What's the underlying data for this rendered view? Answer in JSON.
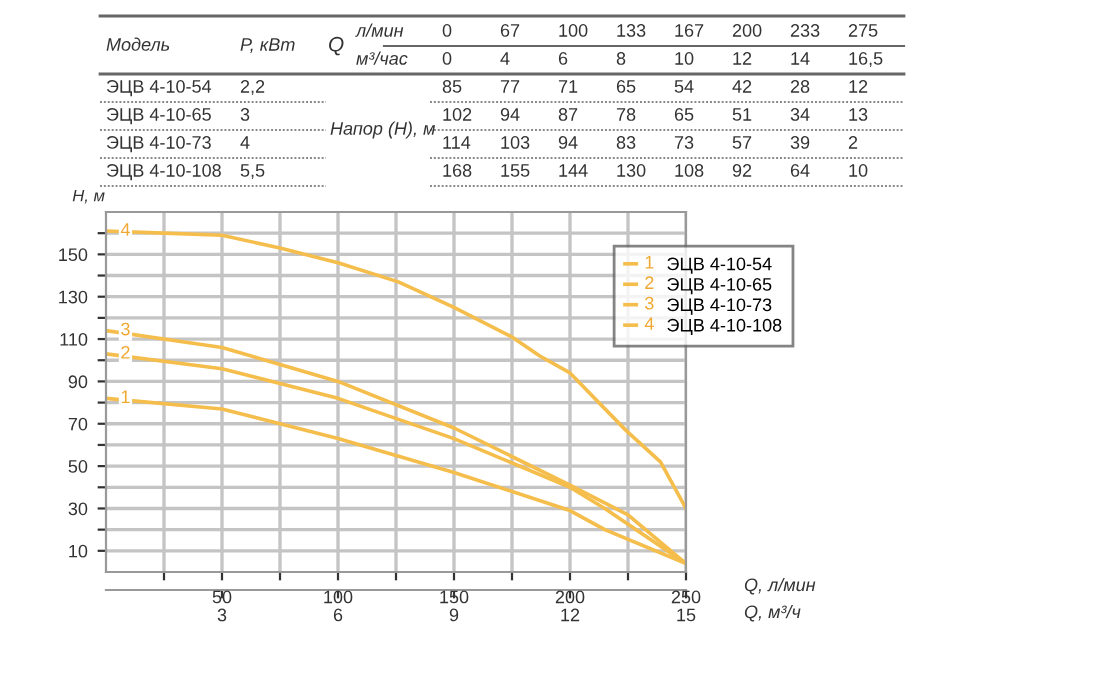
{
  "chart_data": [
    {
      "type": "other",
      "categories": [
        "0",
        "67",
        "100",
        "133",
        "167",
        "200",
        "233",
        "275"
      ],
      "series": [
        {
          "name": "ЭЦВ 4-10-54",
          "values": [
            85,
            77,
            71,
            65,
            54,
            42,
            28,
            12
          ]
        },
        {
          "name": "ЭЦВ 4-10-65",
          "values": [
            102,
            94,
            87,
            78,
            65,
            51,
            34,
            13
          ]
        },
        {
          "name": "ЭЦВ 4-10-73",
          "values": [
            114,
            103,
            94,
            83,
            73,
            57,
            39,
            2
          ]
        },
        {
          "name": "ЭЦВ 4-10-108",
          "values": [
            168,
            155,
            144,
            130,
            108,
            92,
            64,
            10
          ]
        }
      ],
      "data_labels": true,
      "annotations": [
        "Модель",
        "P, кВт",
        "Q",
        "л/мин",
        "м³/час",
        "Напор (Н), м",
        "0",
        "4",
        "6",
        "8",
        "10",
        "12",
        "14",
        "16,5",
        "2,2",
        "3",
        "4",
        "5,5"
      ]
    },
    {
      "type": "line",
      "xlabel": "Q, л/мин",
      "x2label": "Q, м³/ч",
      "ylabel": "H, м",
      "xlim": [
        0,
        250
      ],
      "xticks": [
        {
          "value": 25,
          "label": null
        },
        50,
        {
          "value": 75,
          "label": null
        },
        100,
        {
          "value": 125,
          "label": null
        },
        150,
        {
          "value": 175,
          "label": null
        },
        200,
        {
          "value": 225,
          "label": null
        },
        250
      ],
      "x2lim": [
        0,
        15
      ],
      "x2ticks": [
        3,
        6,
        9,
        12,
        15
      ],
      "ylim": [
        0,
        170
      ],
      "yticks": [
        10,
        {
          "value": 20,
          "label": null
        },
        30,
        {
          "value": 40,
          "label": null
        },
        50,
        {
          "value": 60,
          "label": null
        },
        70,
        {
          "value": 80,
          "label": null
        },
        90,
        {
          "value": 100,
          "label": null
        },
        110,
        {
          "value": 120,
          "label": null
        },
        130,
        {
          "value": 140,
          "label": null
        },
        150,
        {
          "value": 160,
          "label": null
        }
      ],
      "grid": true,
      "legend": "top right",
      "series": [
        {
          "name": "ЭЦВ 4-10-54",
          "color": "#f5be4c",
          "x": [
            0,
            50,
            100,
            150,
            200,
            215,
            250
          ],
          "values": [
            82,
            77,
            63,
            47,
            29,
            20,
            4
          ]
        },
        {
          "name": "ЭЦВ 4-10-65",
          "color": "#f5be4c",
          "x": [
            0,
            50,
            100,
            150,
            200,
            215,
            250
          ],
          "values": [
            103,
            96,
            82,
            63,
            40,
            30,
            4
          ]
        },
        {
          "name": "ЭЦВ 4-10-73",
          "color": "#f5be4c",
          "x": [
            0,
            50,
            100,
            150,
            200,
            225,
            250
          ],
          "values": [
            114,
            106,
            90,
            68,
            41,
            27,
            4
          ]
        },
        {
          "name": "ЭЦВ 4-10-108",
          "color": "#f5be4c",
          "x": [
            0,
            25,
            50,
            75,
            100,
            126,
            150,
            175,
            187,
            200,
            224,
            239,
            250
          ],
          "values": [
            161,
            160,
            159,
            153,
            146,
            137,
            125,
            111,
            102,
            94,
            67,
            52,
            30
          ]
        }
      ],
      "annotations": [
        "1",
        "2",
        "3",
        "4"
      ]
    }
  ]
}
